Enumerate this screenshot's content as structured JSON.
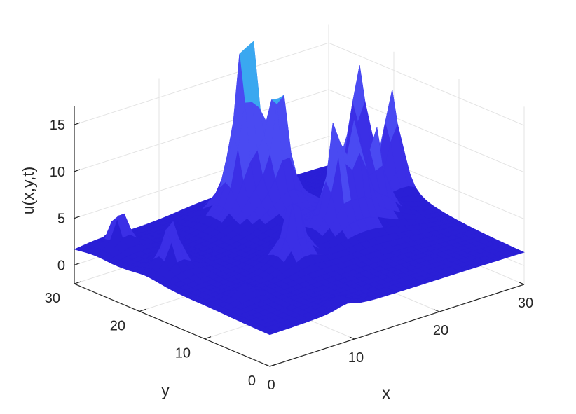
{
  "chart_data": {
    "type": "surface",
    "title": "",
    "xlabel": "x",
    "ylabel": "y",
    "zlabel": "u(x,y,t)",
    "xlim": [
      0,
      30
    ],
    "ylim": [
      0,
      30
    ],
    "zlim": [
      -2,
      17
    ],
    "xticks": [
      {
        "value": 0,
        "label": "0"
      },
      {
        "value": 10,
        "label": "10"
      },
      {
        "value": 20,
        "label": "20"
      },
      {
        "value": 30,
        "label": "30"
      }
    ],
    "yticks": [
      {
        "value": 0,
        "label": "0"
      },
      {
        "value": 10,
        "label": "10"
      },
      {
        "value": 20,
        "label": "20"
      },
      {
        "value": 30,
        "label": "30"
      }
    ],
    "zticks": [
      {
        "value": 0,
        "label": "0"
      },
      {
        "value": 5,
        "label": "5"
      },
      {
        "value": 10,
        "label": "10"
      },
      {
        "value": 15,
        "label": "15"
      }
    ],
    "grid": true,
    "colormap": [
      "#2a1fd6",
      "#3b2fe6",
      "#4a4af2",
      "#3aa8f0"
    ],
    "baseline_level": 1.2,
    "peaks": [
      {
        "x": 3,
        "y": 27,
        "height": 6.0
      },
      {
        "x": 3,
        "y": 19,
        "height": 7.2
      },
      {
        "x": 4,
        "y": 9,
        "height": 2.8
      },
      {
        "x": 15,
        "y": 24,
        "height": 14.5
      },
      {
        "x": 16.5,
        "y": 24.5,
        "height": 17.5
      },
      {
        "x": 18,
        "y": 22,
        "height": 15.5
      },
      {
        "x": 18.5,
        "y": 14,
        "height": 13.0
      },
      {
        "x": 21,
        "y": 14,
        "height": 11.5
      },
      {
        "x": 12,
        "y": 12,
        "height": 9.5
      },
      {
        "x": 24,
        "y": 15,
        "height": 10.5
      },
      {
        "x": 29,
        "y": 24,
        "height": 14.5
      },
      {
        "x": 29,
        "y": 19,
        "height": 13.0
      },
      {
        "x": 9,
        "y": 1,
        "height": 2.5
      }
    ]
  }
}
